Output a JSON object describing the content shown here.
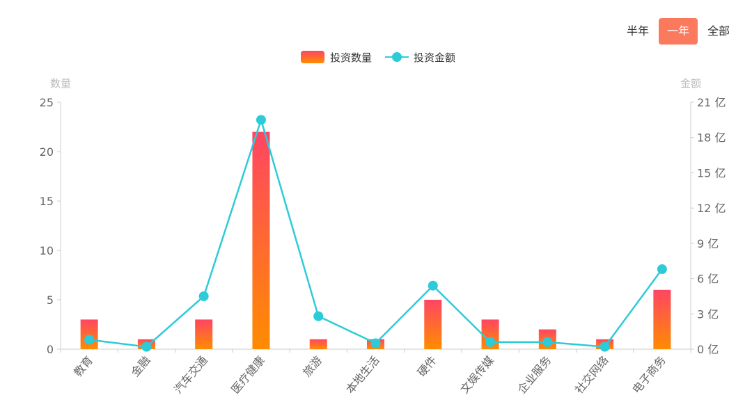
{
  "period_tabs": [
    {
      "label": "半年",
      "active": false
    },
    {
      "label": "一年",
      "active": true
    },
    {
      "label": "全部",
      "active": false
    }
  ],
  "colors": {
    "bar_top": "#ff4563",
    "bar_bottom": "#ff8c00",
    "line": "#2ccbd8",
    "active_tab": "#fb7a5e"
  },
  "chart_data": {
    "type": "bar",
    "categories": [
      "教育",
      "金融",
      "汽车交通",
      "医疗健康",
      "旅游",
      "本地生活",
      "硬件",
      "文娱传媒",
      "企业服务",
      "社交网络",
      "电子商务"
    ],
    "series": [
      {
        "name": "投资数量",
        "type": "bar",
        "axis": "left",
        "values": [
          3,
          1,
          3,
          22,
          1,
          1,
          5,
          3,
          2,
          1,
          6
        ]
      },
      {
        "name": "投资金额",
        "type": "line",
        "axis": "right",
        "values": [
          0.8,
          0.2,
          4.5,
          19.5,
          2.8,
          0.5,
          5.4,
          0.6,
          0.6,
          0.2,
          6.8
        ]
      }
    ],
    "left_axis": {
      "name": "数量",
      "min": 0,
      "max": 25,
      "ticks": [
        0,
        5,
        10,
        15,
        20,
        25
      ]
    },
    "right_axis": {
      "name": "金额",
      "min": 0,
      "max": 21,
      "ticks": [
        0,
        3,
        6,
        9,
        12,
        15,
        18,
        21
      ],
      "unit": "亿"
    },
    "legend": {
      "position": "top-center",
      "items": [
        "投资数量",
        "投资金额"
      ]
    },
    "grid": false
  }
}
